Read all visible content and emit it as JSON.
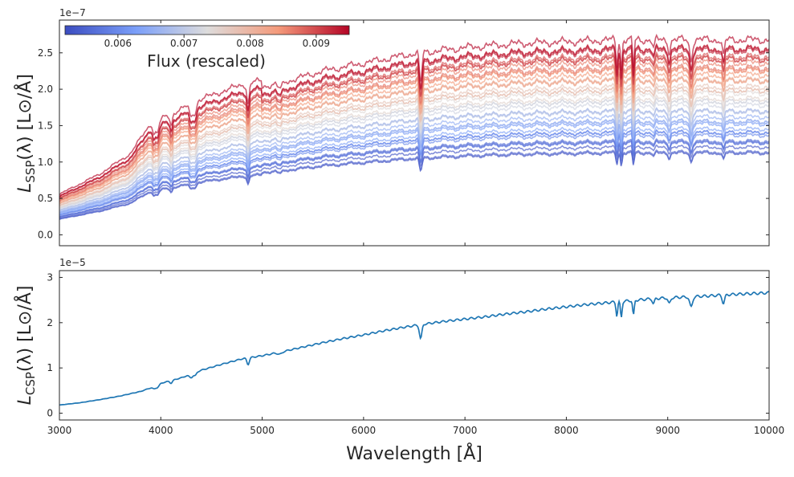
{
  "chart_data": [
    {
      "type": "line",
      "panel": "top",
      "title": "",
      "xlabel": "",
      "ylabel_main": "L",
      "ylabel_sub": "SSP",
      "ylabel_rest": "(λ) [L⊙/Å]",
      "y_multiplier": "1e−7",
      "xlim": [
        3000,
        10000
      ],
      "ylim": [
        -0.15,
        2.95
      ],
      "y_unit_scale": 1e-07,
      "x_ticks": [
        3000,
        4000,
        5000,
        6000,
        7000,
        8000,
        9000,
        10000
      ],
      "y_ticks": [
        0.0,
        0.5,
        1.0,
        1.5,
        2.0,
        2.5
      ],
      "y_tick_labels": [
        "0.0",
        "0.5",
        "1.0",
        "1.5",
        "2.0",
        "2.5"
      ],
      "grid": false,
      "colorbar": {
        "label": "Flux (rescaled)",
        "colormap": "coolwarm",
        "range": [
          0.0052,
          0.0095
        ],
        "ticks": [
          0.006,
          0.007,
          0.008,
          0.009
        ],
        "tick_labels": [
          "0.006",
          "0.007",
          "0.008",
          "0.009"
        ]
      },
      "series_count": 40,
      "level_min": 1.12,
      "level_max": 2.62,
      "approx_reference_at_10000A": 1.7,
      "shape_x": [
        3000,
        3400,
        3700,
        3900,
        4000,
        4200,
        4400,
        4800,
        5200,
        5600,
        6000,
        6500,
        7000,
        7500,
        8000,
        8500,
        9000,
        9500,
        10000
      ],
      "shape_rel": [
        0.2,
        0.3,
        0.4,
        0.55,
        0.57,
        0.62,
        0.67,
        0.74,
        0.78,
        0.84,
        0.88,
        0.93,
        0.96,
        0.98,
        0.99,
        1.0,
        1.0,
        1.0,
        1.0
      ]
    },
    {
      "type": "line",
      "panel": "bottom",
      "title": "",
      "xlabel": "Wavelength [Å]",
      "ylabel_main": "L",
      "ylabel_sub": "CSP",
      "ylabel_rest": "(λ) [L⊙/Å]",
      "y_multiplier": "1e−5",
      "xlim": [
        3000,
        10000
      ],
      "ylim": [
        -0.15,
        3.15
      ],
      "x_ticks": [
        3000,
        4000,
        5000,
        6000,
        7000,
        8000,
        9000,
        10000
      ],
      "x_tick_labels": [
        "3000",
        "4000",
        "5000",
        "6000",
        "7000",
        "8000",
        "9000",
        "10000"
      ],
      "y_ticks": [
        0,
        1,
        2,
        3
      ],
      "y_tick_labels": [
        "0",
        "1",
        "2",
        "3"
      ],
      "grid": false,
      "series": [
        {
          "color": "#1f77b4",
          "x": [
            3000,
            3200,
            3400,
            3600,
            3800,
            3900,
            4000,
            4200,
            4400,
            4600,
            4800,
            5000,
            5200,
            5400,
            5600,
            5800,
            6000,
            6200,
            6400,
            6600,
            6800,
            7000,
            7200,
            7400,
            7600,
            7800,
            8000,
            8200,
            8400,
            8600,
            8800,
            9000,
            9200,
            9400,
            9600,
            9800,
            10000
          ],
          "values": [
            0.18,
            0.23,
            0.3,
            0.38,
            0.48,
            0.56,
            0.66,
            0.78,
            0.95,
            1.08,
            1.2,
            1.27,
            1.36,
            1.46,
            1.56,
            1.65,
            1.73,
            1.82,
            1.9,
            1.97,
            2.03,
            2.08,
            2.13,
            2.19,
            2.24,
            2.3,
            2.35,
            2.4,
            2.44,
            2.48,
            2.52,
            2.55,
            2.57,
            2.59,
            2.62,
            2.64,
            2.66
          ]
        }
      ]
    }
  ]
}
